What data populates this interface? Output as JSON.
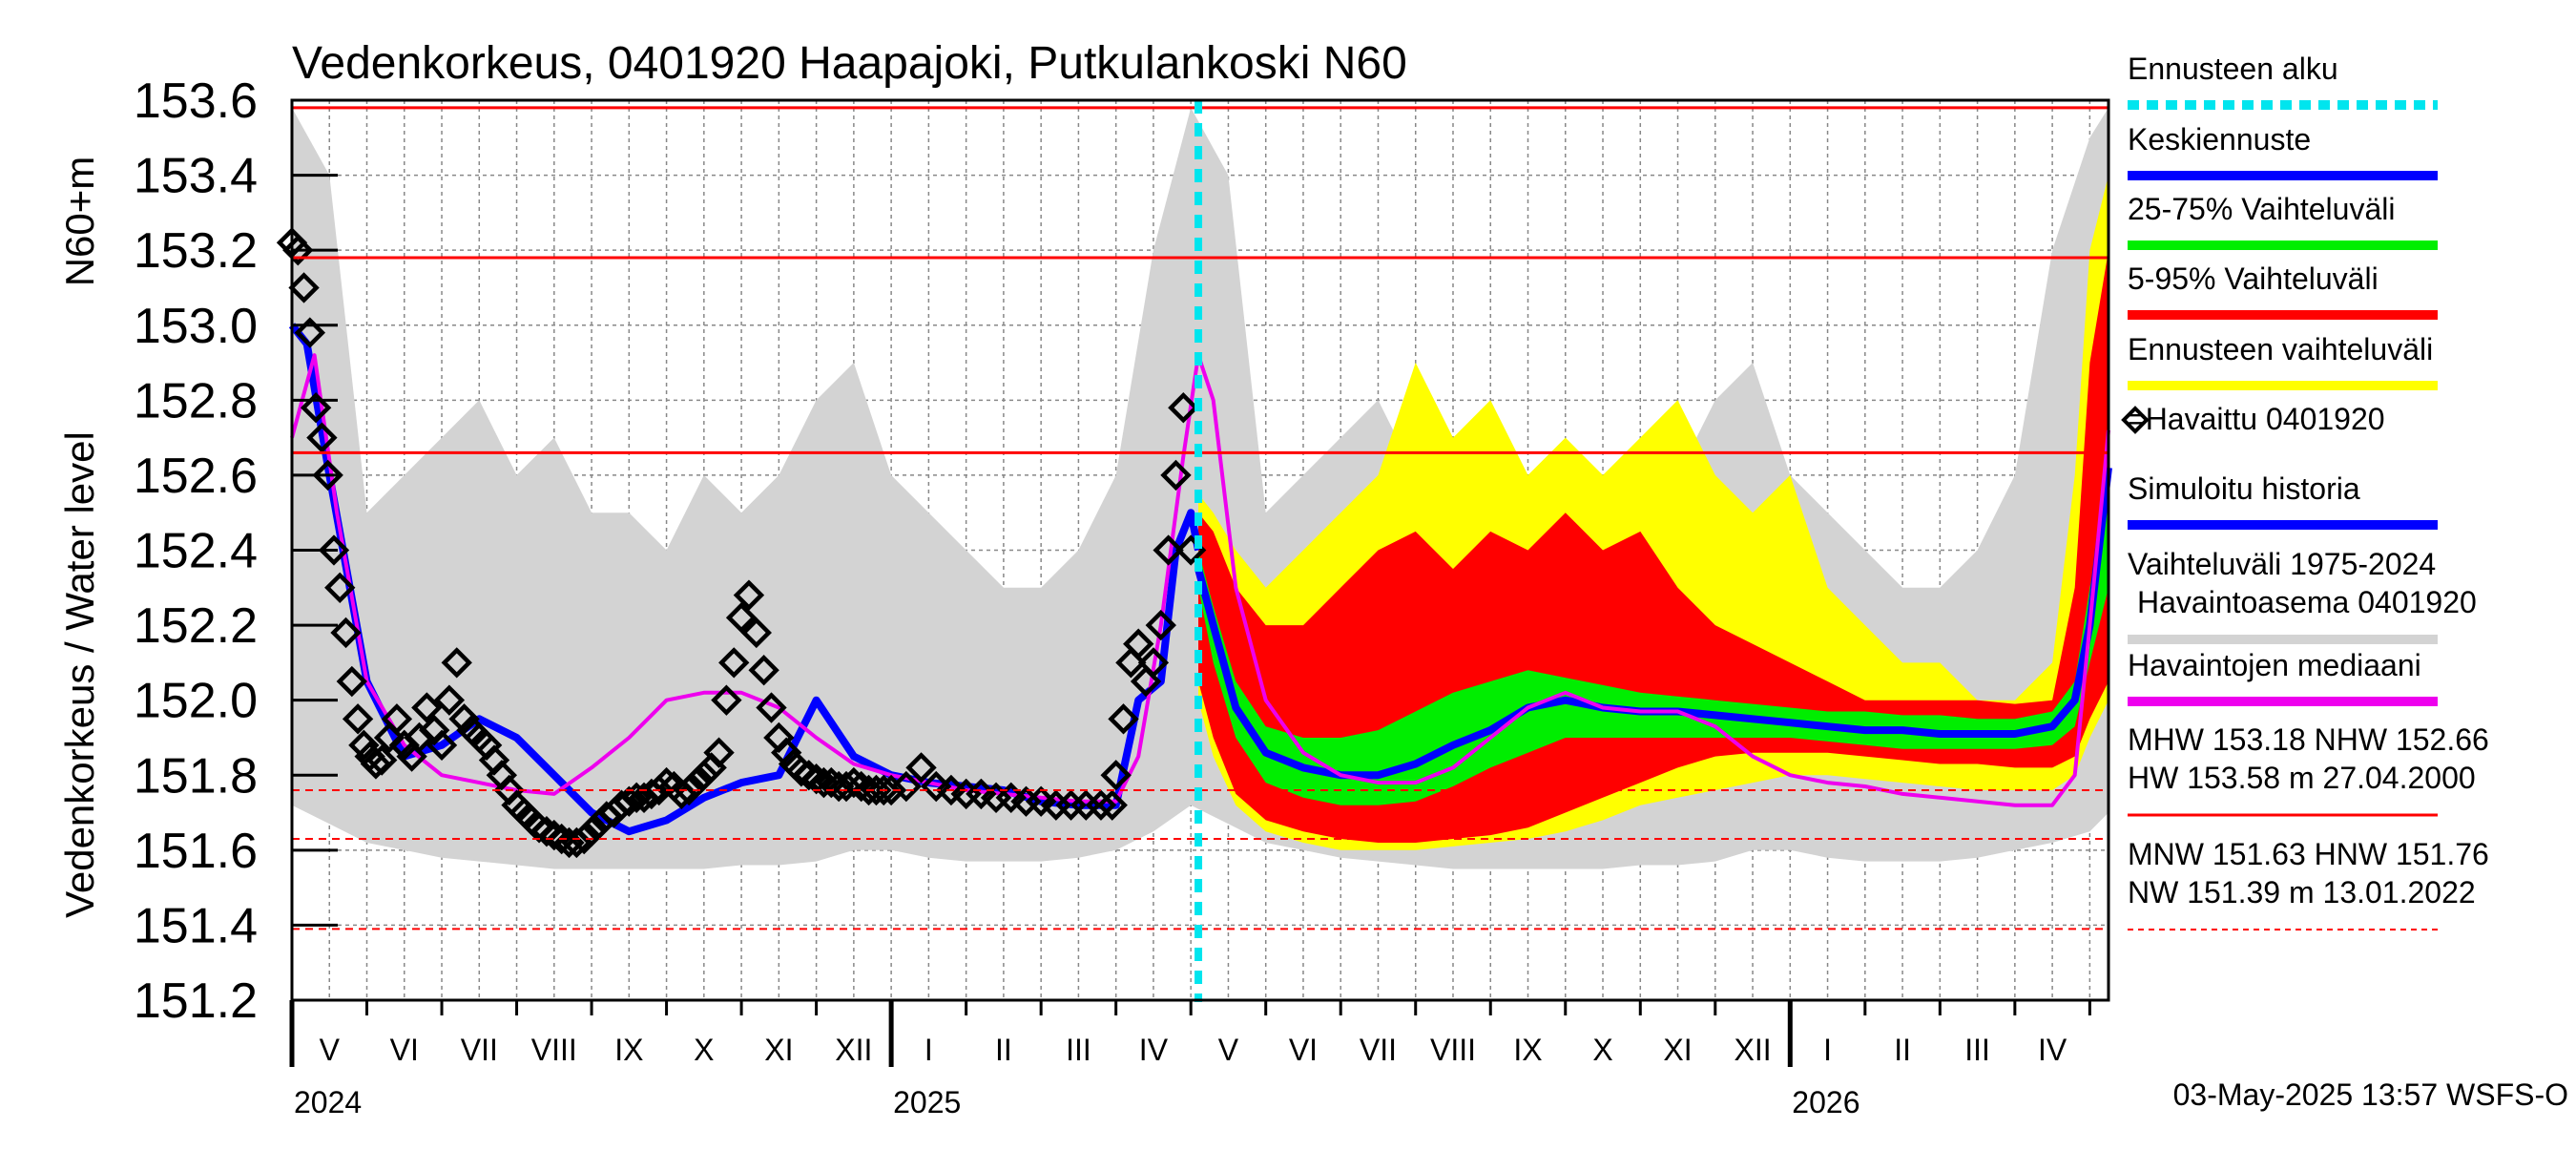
{
  "chart_data": {
    "type": "area",
    "title": "Vedenkorkeus, 0401920 Haapajoki, Putkulankoski N60",
    "ylabel": "Vedenkorkeus / Water level",
    "ylabel_unit": "N60+m",
    "ylim": [
      151.2,
      153.6
    ],
    "yticks": [
      "151.2",
      "151.4",
      "151.6",
      "151.8",
      "152.0",
      "152.2",
      "152.4",
      "152.6",
      "152.8",
      "153.0",
      "153.2",
      "153.4",
      "153.6"
    ],
    "x_range_months": [
      0,
      24.25
    ],
    "forecast_start_month": 12.1,
    "month_labels": [
      "V",
      "VI",
      "VII",
      "VIII",
      "IX",
      "X",
      "XI",
      "XII",
      "I",
      "II",
      "III",
      "IV",
      "V",
      "VI",
      "VII",
      "VIII",
      "IX",
      "X",
      "XI",
      "XII",
      "I",
      "II",
      "III",
      "IV"
    ],
    "year_labels": [
      {
        "label": "2024",
        "month": 0
      },
      {
        "label": "2025",
        "month": 8
      },
      {
        "label": "2026",
        "month": 20
      }
    ],
    "reference_lines": [
      {
        "name": "HW",
        "value": 153.58,
        "style": "solid"
      },
      {
        "name": "MHW",
        "value": 153.18,
        "style": "solid"
      },
      {
        "name": "NHW",
        "value": 152.66,
        "style": "solid"
      },
      {
        "name": "HNW",
        "value": 151.76,
        "style": "dashed"
      },
      {
        "name": "MNW",
        "value": 151.63,
        "style": "dashed"
      },
      {
        "name": "NW",
        "value": 151.39,
        "style": "dashed"
      }
    ],
    "series": [
      {
        "name": "Vaihteluväli 1975-2024 Havaintoasema 0401920",
        "color": "#d3d3d3",
        "kind": "band",
        "x": [
          0,
          0.5,
          1,
          1.5,
          2,
          2.5,
          3,
          3.5,
          4,
          4.5,
          5,
          5.5,
          6,
          6.5,
          7,
          7.5,
          8,
          8.5,
          9,
          9.5,
          10,
          10.5,
          11,
          11.5,
          12,
          12.5,
          13,
          13.5,
          14,
          14.5,
          15,
          15.5,
          16,
          16.5,
          17,
          17.5,
          18,
          18.5,
          19,
          19.5,
          20,
          20.5,
          21,
          21.5,
          22,
          22.5,
          23,
          23.5,
          24,
          24.25
        ],
        "low": [
          151.72,
          151.67,
          151.62,
          151.6,
          151.58,
          151.57,
          151.56,
          151.55,
          151.55,
          151.55,
          151.55,
          151.55,
          151.56,
          151.56,
          151.57,
          151.6,
          151.6,
          151.58,
          151.57,
          151.57,
          151.57,
          151.58,
          151.6,
          151.65,
          151.72,
          151.67,
          151.62,
          151.6,
          151.58,
          151.57,
          151.56,
          151.55,
          151.55,
          151.55,
          151.55,
          151.55,
          151.56,
          151.56,
          151.57,
          151.6,
          151.6,
          151.58,
          151.57,
          151.57,
          151.57,
          151.58,
          151.6,
          151.62,
          151.65,
          151.7
        ],
        "high": [
          153.58,
          153.4,
          152.5,
          152.6,
          152.7,
          152.8,
          152.6,
          152.7,
          152.5,
          152.5,
          152.4,
          152.6,
          152.5,
          152.6,
          152.8,
          152.9,
          152.6,
          152.5,
          152.4,
          152.3,
          152.3,
          152.4,
          152.6,
          153.2,
          153.58,
          153.4,
          152.5,
          152.6,
          152.7,
          152.8,
          152.6,
          152.7,
          152.5,
          152.5,
          152.4,
          152.6,
          152.5,
          152.6,
          152.8,
          152.9,
          152.6,
          152.5,
          152.4,
          152.3,
          152.3,
          152.4,
          152.6,
          153.2,
          153.5,
          153.58
        ]
      },
      {
        "name": "Ennusteen vaihteluväli",
        "color": "#ffff00",
        "kind": "band",
        "x": [
          12.1,
          12.3,
          12.6,
          13,
          13.5,
          14,
          14.5,
          15,
          15.5,
          16,
          16.5,
          17,
          17.5,
          18,
          18.5,
          19,
          19.5,
          20,
          20.5,
          21,
          21.5,
          22,
          22.5,
          23,
          23.5,
          23.8,
          24,
          24.25
        ],
        "low": [
          152.0,
          151.85,
          151.72,
          151.65,
          151.62,
          151.6,
          151.6,
          151.6,
          151.61,
          151.62,
          151.63,
          151.65,
          151.68,
          151.72,
          151.74,
          151.76,
          151.78,
          151.8,
          151.8,
          151.79,
          151.78,
          151.77,
          151.76,
          151.76,
          151.76,
          151.8,
          151.9,
          152.0
        ],
        "high": [
          152.55,
          152.5,
          152.4,
          152.3,
          152.4,
          152.5,
          152.6,
          152.9,
          152.7,
          152.8,
          152.6,
          152.7,
          152.6,
          152.7,
          152.8,
          152.6,
          152.5,
          152.6,
          152.3,
          152.2,
          152.1,
          152.1,
          152.0,
          152.0,
          152.1,
          152.6,
          153.2,
          153.4
        ]
      },
      {
        "name": "5-95% Vaihteluväli",
        "color": "#ff0000",
        "kind": "band",
        "x": [
          12.1,
          12.3,
          12.6,
          13,
          13.5,
          14,
          14.5,
          15,
          15.5,
          16,
          16.5,
          17,
          17.5,
          18,
          18.5,
          19,
          19.5,
          20,
          20.5,
          21,
          21.5,
          22,
          22.5,
          23,
          23.5,
          23.8,
          24,
          24.25
        ],
        "low": [
          152.05,
          151.9,
          151.75,
          151.68,
          151.65,
          151.63,
          151.62,
          151.62,
          151.63,
          151.64,
          151.66,
          151.7,
          151.74,
          151.78,
          151.82,
          151.85,
          151.86,
          151.86,
          151.86,
          151.85,
          151.84,
          151.83,
          151.83,
          151.82,
          151.82,
          151.85,
          151.95,
          152.05
        ],
        "high": [
          152.5,
          152.45,
          152.3,
          152.2,
          152.2,
          152.3,
          152.4,
          152.45,
          152.35,
          152.45,
          152.4,
          152.5,
          152.4,
          152.45,
          152.3,
          152.2,
          152.15,
          152.1,
          152.05,
          152.0,
          152.0,
          152.0,
          152.0,
          151.99,
          152.0,
          152.3,
          152.9,
          153.2
        ]
      },
      {
        "name": "25-75% Vaihteluväli",
        "color": "#00ee00",
        "kind": "band",
        "x": [
          12.1,
          12.3,
          12.6,
          13,
          13.5,
          14,
          14.5,
          15,
          15.5,
          16,
          16.5,
          17,
          17.5,
          18,
          18.5,
          19,
          19.5,
          20,
          20.5,
          21,
          21.5,
          22,
          22.5,
          23,
          23.5,
          23.8,
          24,
          24.25
        ],
        "low": [
          152.3,
          152.1,
          151.9,
          151.78,
          151.74,
          151.72,
          151.72,
          151.73,
          151.77,
          151.82,
          151.86,
          151.9,
          151.9,
          151.9,
          151.9,
          151.9,
          151.9,
          151.9,
          151.89,
          151.88,
          151.87,
          151.87,
          151.87,
          151.87,
          151.88,
          151.93,
          152.1,
          152.3
        ],
        "high": [
          152.4,
          152.25,
          152.05,
          151.93,
          151.9,
          151.9,
          151.92,
          151.97,
          152.02,
          152.05,
          152.08,
          152.06,
          152.04,
          152.02,
          152.01,
          152.0,
          151.99,
          151.98,
          151.97,
          151.97,
          151.96,
          151.96,
          151.95,
          151.95,
          151.97,
          152.05,
          152.3,
          152.55
        ]
      },
      {
        "name": "Keskiennuste",
        "color": "#0000ff",
        "kind": "line",
        "x": [
          12.1,
          12.3,
          12.6,
          13,
          13.5,
          14,
          14.5,
          15,
          15.5,
          16,
          16.5,
          17,
          17.5,
          18,
          18.5,
          19,
          19.5,
          20,
          20.5,
          21,
          21.5,
          22,
          22.5,
          23,
          23.5,
          23.8,
          24,
          24.25
        ],
        "values": [
          152.35,
          152.2,
          151.98,
          151.86,
          151.82,
          151.8,
          151.8,
          151.83,
          151.88,
          151.92,
          151.98,
          152.0,
          151.98,
          151.97,
          151.97,
          151.96,
          151.95,
          151.94,
          151.93,
          151.92,
          151.92,
          151.91,
          151.91,
          151.91,
          151.93,
          152.0,
          152.2,
          152.62
        ]
      },
      {
        "name": "Simuloitu historia",
        "color": "#0000ff",
        "kind": "line",
        "x": [
          0,
          0.2,
          0.5,
          1,
          1.5,
          2,
          2.5,
          3,
          3.5,
          4,
          4.5,
          5,
          5.5,
          6,
          6.5,
          7,
          7.5,
          8,
          8.5,
          9,
          9.5,
          10,
          10.5,
          11,
          11.3,
          11.6,
          11.8,
          12.0,
          12.1
        ],
        "values": [
          153.0,
          152.95,
          152.6,
          152.05,
          151.85,
          151.88,
          151.95,
          151.9,
          151.8,
          151.7,
          151.65,
          151.68,
          151.74,
          151.78,
          151.8,
          152.0,
          151.85,
          151.8,
          151.78,
          151.77,
          151.76,
          151.73,
          151.72,
          151.72,
          152.0,
          152.05,
          152.4,
          152.5,
          152.4
        ]
      },
      {
        "name": "Havaintojen mediaani",
        "color": "#ee00ee",
        "kind": "line",
        "x": [
          0,
          0.3,
          0.6,
          1,
          1.5,
          2,
          2.5,
          3,
          3.5,
          4,
          4.5,
          5,
          5.5,
          6,
          6.5,
          7,
          7.5,
          8,
          8.5,
          9,
          9.5,
          10,
          10.5,
          11,
          11.3,
          11.6,
          11.9,
          12.1,
          12.3,
          12.6,
          13,
          13.5,
          14,
          14.5,
          15,
          15.5,
          16,
          16.5,
          17,
          17.5,
          18,
          18.5,
          19,
          19.5,
          20,
          20.5,
          21,
          21.5,
          22,
          22.5,
          23,
          23.5,
          23.8,
          24,
          24.25
        ],
        "values": [
          152.7,
          152.92,
          152.5,
          152.05,
          151.88,
          151.8,
          151.78,
          151.76,
          151.75,
          151.82,
          151.9,
          152.0,
          152.02,
          152.02,
          151.98,
          151.9,
          151.83,
          151.8,
          151.78,
          151.76,
          151.75,
          151.74,
          151.73,
          151.73,
          151.85,
          152.2,
          152.65,
          152.92,
          152.8,
          152.3,
          152.0,
          151.86,
          151.8,
          151.78,
          151.78,
          151.82,
          151.9,
          151.98,
          152.02,
          151.98,
          151.97,
          151.97,
          151.93,
          151.85,
          151.8,
          151.78,
          151.77,
          151.75,
          151.74,
          151.73,
          151.72,
          151.72,
          151.8,
          152.2,
          152.72
        ]
      },
      {
        "name": "=Havaittu 0401920",
        "color": "#000000",
        "kind": "points",
        "x": [
          0,
          0.08,
          0.16,
          0.24,
          0.32,
          0.4,
          0.48,
          0.56,
          0.64,
          0.72,
          0.8,
          0.88,
          0.96,
          1.04,
          1.12,
          1.2,
          1.3,
          1.4,
          1.5,
          1.6,
          1.7,
          1.8,
          1.9,
          2.0,
          2.1,
          2.2,
          2.3,
          2.4,
          2.5,
          2.6,
          2.7,
          2.8,
          2.9,
          3.0,
          3.1,
          3.2,
          3.3,
          3.4,
          3.5,
          3.6,
          3.7,
          3.8,
          3.9,
          4.0,
          4.1,
          4.2,
          4.3,
          4.4,
          4.5,
          4.6,
          4.7,
          4.8,
          4.9,
          5.0,
          5.1,
          5.2,
          5.3,
          5.4,
          5.5,
          5.6,
          5.7,
          5.8,
          5.9,
          6.0,
          6.1,
          6.2,
          6.3,
          6.4,
          6.5,
          6.6,
          6.7,
          6.8,
          6.9,
          7.0,
          7.1,
          7.2,
          7.3,
          7.4,
          7.5,
          7.6,
          7.7,
          7.8,
          7.9,
          8.0,
          8.2,
          8.4,
          8.6,
          8.8,
          9.0,
          9.2,
          9.4,
          9.6,
          9.8,
          10.0,
          10.2,
          10.4,
          10.6,
          10.8,
          10.95,
          11.0,
          11.1,
          11.2,
          11.3,
          11.4,
          11.5,
          11.6,
          11.7,
          11.8,
          11.9,
          12.0
        ],
        "values": [
          153.22,
          153.2,
          153.1,
          152.98,
          152.78,
          152.7,
          152.6,
          152.4,
          152.3,
          152.18,
          152.05,
          151.95,
          151.88,
          151.85,
          151.83,
          151.84,
          151.9,
          151.95,
          151.88,
          151.85,
          151.9,
          151.98,
          151.92,
          151.88,
          152.0,
          152.1,
          151.95,
          151.92,
          151.9,
          151.88,
          151.84,
          151.8,
          151.76,
          151.72,
          151.7,
          151.68,
          151.66,
          151.65,
          151.64,
          151.63,
          151.62,
          151.62,
          151.63,
          151.65,
          151.67,
          151.69,
          151.7,
          151.72,
          151.73,
          151.74,
          151.74,
          151.75,
          151.76,
          151.78,
          151.77,
          151.75,
          151.76,
          151.78,
          151.8,
          151.82,
          151.86,
          152.0,
          152.1,
          152.22,
          152.28,
          152.18,
          152.08,
          151.98,
          151.9,
          151.86,
          151.83,
          151.81,
          151.8,
          151.79,
          151.78,
          151.78,
          151.77,
          151.77,
          151.78,
          151.77,
          151.76,
          151.76,
          151.76,
          151.76,
          151.77,
          151.82,
          151.77,
          151.76,
          151.75,
          151.75,
          151.74,
          151.74,
          151.73,
          151.73,
          151.72,
          151.72,
          151.72,
          151.72,
          151.72,
          151.8,
          151.95,
          152.1,
          152.15,
          152.05,
          152.1,
          152.2,
          152.4,
          152.6,
          152.78,
          152.4
        ]
      }
    ],
    "legend": [
      {
        "label": "Ennusteen alku",
        "color": "#00e5ee",
        "style": "dashed"
      },
      {
        "label": "Keskiennuste",
        "color": "#0000ff",
        "style": "line"
      },
      {
        "label": "25-75% Vaihteluväli",
        "color": "#00ee00",
        "style": "line"
      },
      {
        "label": "5-95% Vaihteluväli",
        "color": "#ff0000",
        "style": "line"
      },
      {
        "label": "Ennusteen vaihteluväli",
        "color": "#ffff00",
        "style": "line"
      },
      {
        "label": "=Havaittu 0401920",
        "color": "#000000",
        "style": "marker"
      },
      {
        "label": "Simuloitu historia",
        "color": "#0000ff",
        "style": "line"
      },
      {
        "label": "Vaihteluväli 1975-2024",
        "label2": "Havaintoasema 0401920",
        "color": "#d3d3d3",
        "style": "line"
      },
      {
        "label": "Havaintojen mediaani",
        "color": "#ee00ee",
        "style": "line"
      },
      {
        "label": "MHW 153.18 NHW 152.66",
        "label2": "HW 153.58 m 27.04.2000",
        "color": "#ff0000",
        "style": "solid-thin"
      },
      {
        "label": "MNW 151.63 HNW 151.76",
        "label2": "NW 151.39 m 13.01.2022",
        "color": "#ff0000",
        "style": "dashed-thin"
      }
    ],
    "legend_position": "right",
    "grid": true,
    "footer": "03-May-2025 13:57 WSFS-O"
  }
}
